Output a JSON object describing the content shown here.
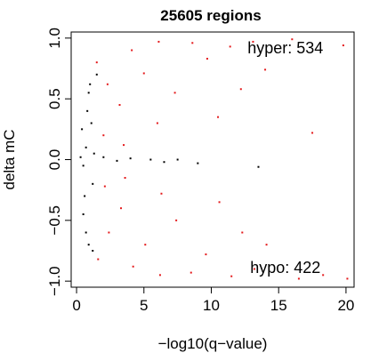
{
  "chart_data": {
    "type": "scatter",
    "title": "25605 regions",
    "xlabel": "−log10(q−value)",
    "ylabel": "delta mC",
    "xlim": [
      -0.4,
      20.6
    ],
    "ylim": [
      -1.05,
      1.05
    ],
    "x_ticks": [
      0,
      5,
      10,
      15,
      20
    ],
    "x_tick_labels": [
      "0",
      "5",
      "10",
      "15",
      "20"
    ],
    "y_ticks": [
      -1.0,
      -0.5,
      0.0,
      0.5,
      1.0
    ],
    "y_tick_labels": [
      "−1.0",
      "−0.5",
      "0.0",
      "0.5",
      "1.0"
    ],
    "grid": false,
    "legend": "none",
    "annotations": [
      {
        "key": "hyper",
        "text": "hyper: 534",
        "x": 15.5,
        "y": 0.92
      },
      {
        "key": "hypo",
        "text": "hypo: 422",
        "x": 15.5,
        "y": -0.89
      }
    ],
    "series": [
      {
        "color": "#000000",
        "points": [
          [
            0.3,
            0.02
          ],
          [
            0.5,
            -0.05
          ],
          [
            0.7,
            0.1
          ],
          [
            0.4,
            0.25
          ],
          [
            0.6,
            -0.3
          ],
          [
            0.8,
            0.4
          ],
          [
            0.5,
            -0.45
          ],
          [
            0.9,
            0.55
          ],
          [
            0.7,
            -0.6
          ],
          [
            1.0,
            0.62
          ],
          [
            0.9,
            -0.7
          ],
          [
            1.1,
            0.3
          ],
          [
            1.2,
            -0.2
          ],
          [
            1.3,
            0.05
          ],
          [
            2.0,
            0.02
          ],
          [
            3.0,
            -0.01
          ],
          [
            4.0,
            0.01
          ],
          [
            5.5,
            0.0
          ],
          [
            6.5,
            -0.02
          ],
          [
            7.5,
            0.0
          ],
          [
            9.0,
            -0.03
          ],
          [
            13.5,
            -0.06
          ],
          [
            1.5,
            0.7
          ],
          [
            1.2,
            -0.75
          ]
        ]
      },
      {
        "color": "#e41a1c",
        "points": [
          [
            1.5,
            0.8
          ],
          [
            2.3,
            0.62
          ],
          [
            3.2,
            0.45
          ],
          [
            4.1,
            0.9
          ],
          [
            5.0,
            0.71
          ],
          [
            6.1,
            0.97
          ],
          [
            7.3,
            0.55
          ],
          [
            8.6,
            0.96
          ],
          [
            9.7,
            0.83
          ],
          [
            10.5,
            0.35
          ],
          [
            11.4,
            0.93
          ],
          [
            12.2,
            0.58
          ],
          [
            13.1,
            0.97
          ],
          [
            14.0,
            0.74
          ],
          [
            16.0,
            0.99
          ],
          [
            17.5,
            0.22
          ],
          [
            19.8,
            0.94
          ],
          [
            2.0,
            0.2
          ],
          [
            3.5,
            0.12
          ],
          [
            6.0,
            0.3
          ],
          [
            1.6,
            -0.82
          ],
          [
            2.4,
            -0.6
          ],
          [
            3.3,
            -0.4
          ],
          [
            4.2,
            -0.88
          ],
          [
            5.1,
            -0.7
          ],
          [
            6.2,
            -0.95
          ],
          [
            7.4,
            -0.5
          ],
          [
            8.5,
            -0.93
          ],
          [
            9.6,
            -0.78
          ],
          [
            10.6,
            -0.35
          ],
          [
            11.5,
            -0.96
          ],
          [
            12.3,
            -0.6
          ],
          [
            13.2,
            -0.9
          ],
          [
            14.1,
            -0.7
          ],
          [
            16.5,
            -0.98
          ],
          [
            18.3,
            -0.95
          ],
          [
            20.1,
            -0.98
          ],
          [
            2.1,
            -0.22
          ],
          [
            3.6,
            -0.15
          ],
          [
            6.3,
            -0.28
          ]
        ]
      }
    ]
  }
}
